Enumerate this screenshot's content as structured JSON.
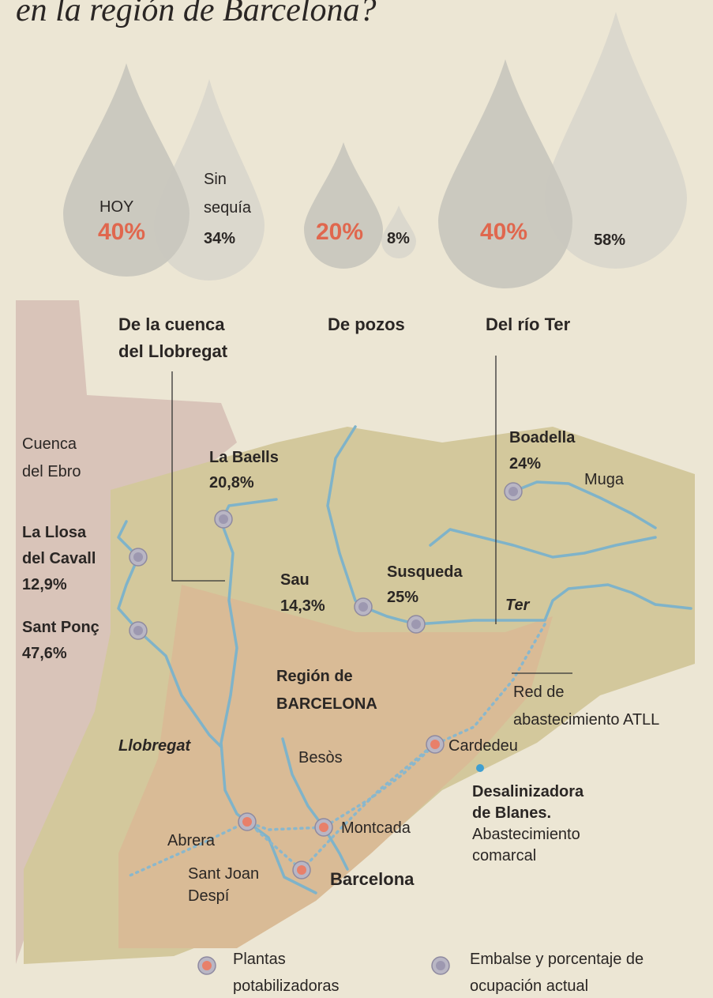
{
  "title": "en la región de Barcelona?",
  "drops": [
    {
      "label": [
        "De la cuenca",
        "del Llobregat"
      ],
      "today_caption": "HOY",
      "today": "40%",
      "normal_caption": [
        "Sin",
        "sequía"
      ],
      "normal": "34%"
    },
    {
      "label": [
        "De pozos"
      ],
      "today": "20%",
      "normal": "8%"
    },
    {
      "label": [
        "Del río Ter"
      ],
      "today": "40%",
      "normal": "58%"
    }
  ],
  "regions": {
    "ebro": [
      "Cuenca",
      "del Ebro"
    ],
    "barcelona": [
      "Región de",
      "BARCELONA"
    ]
  },
  "reservoirs": [
    {
      "name": [
        "La Baells"
      ],
      "occupancy": "20,8%"
    },
    {
      "name": [
        "La Llosa",
        "del Cavall"
      ],
      "occupancy": "12,9%"
    },
    {
      "name": [
        "Sant Ponç"
      ],
      "occupancy": "47,6%"
    },
    {
      "name": [
        "Sau"
      ],
      "occupancy": "14,3%"
    },
    {
      "name": [
        "Susqueda"
      ],
      "occupancy": "25%"
    },
    {
      "name": [
        "Boadella"
      ],
      "occupancy": "24%"
    }
  ],
  "rivers": [
    "Muga",
    "Ter",
    "Llobregat",
    "Besòs"
  ],
  "plants": [
    [
      "Cardedeu"
    ],
    [
      "Abrera"
    ],
    [
      "Montcada"
    ],
    [
      "Sant Joan",
      "Despí"
    ],
    [
      "Barcelona"
    ]
  ],
  "network": [
    "Red de",
    "abastecimiento ATLL"
  ],
  "desalination": {
    "name": [
      "Desalinizadora",
      "de Blanes."
    ],
    "note": [
      "Abastecimiento",
      "comarcal"
    ]
  },
  "legend": [
    [
      "Plantas",
      "potabilizadoras"
    ],
    [
      "Embalse y porcentaje de",
      "ocupación actual"
    ]
  ]
}
